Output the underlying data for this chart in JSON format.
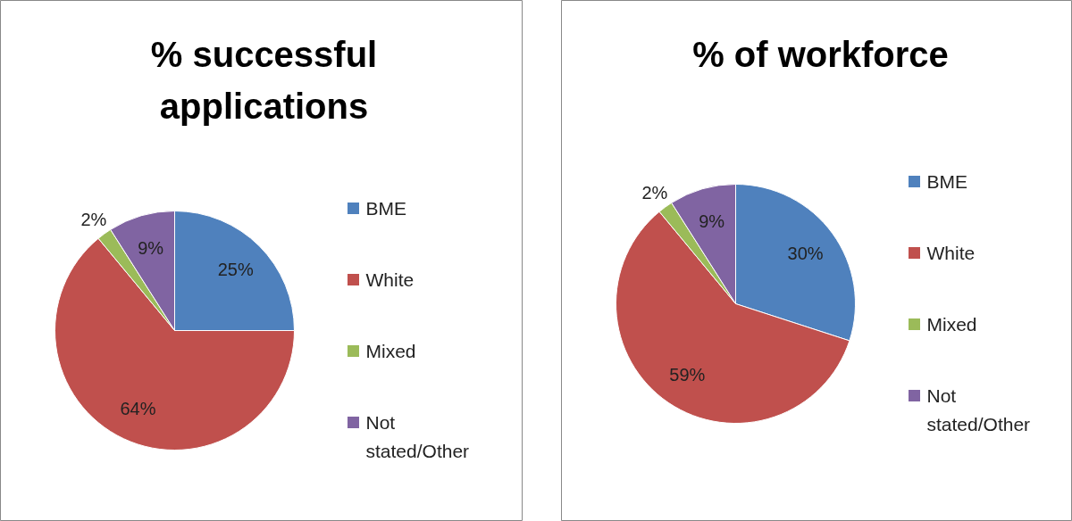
{
  "chart_data": [
    {
      "type": "pie",
      "title": "% successful applications",
      "categories": [
        "BME",
        "White",
        "Mixed",
        "Not stated/Other"
      ],
      "values": [
        25,
        64,
        2,
        9
      ],
      "value_labels": [
        "25%",
        "64%",
        "2%",
        "9%"
      ],
      "colors": [
        "#4f81bd",
        "#c0504d",
        "#9bbb59",
        "#8064a2"
      ],
      "legend": "right"
    },
    {
      "type": "pie",
      "title": "% of workforce",
      "categories": [
        "BME",
        "White",
        "Mixed",
        "Not stated/Other"
      ],
      "values": [
        30,
        59,
        2,
        9
      ],
      "value_labels": [
        "30%",
        "59%",
        "2%",
        "9%"
      ],
      "colors": [
        "#4f81bd",
        "#c0504d",
        "#9bbb59",
        "#8064a2"
      ],
      "legend": "right"
    }
  ]
}
